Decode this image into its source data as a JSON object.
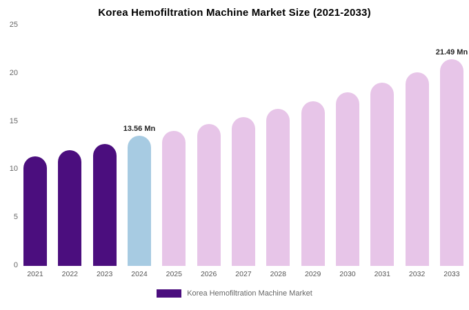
{
  "chart_data": {
    "type": "bar",
    "title": "Korea Hemofiltration Machine Market Size (2021-2033)",
    "categories": [
      "2021",
      "2022",
      "2023",
      "2024",
      "2025",
      "2026",
      "2027",
      "2028",
      "2029",
      "2030",
      "2031",
      "2032",
      "2033"
    ],
    "values": [
      11.4,
      12.0,
      12.68,
      13.56,
      14.05,
      14.75,
      15.5,
      16.3,
      17.15,
      18.05,
      19.05,
      20.1,
      21.49
    ],
    "unit": "Mn",
    "xlabel": "",
    "ylabel": "",
    "ylim": [
      0,
      25
    ],
    "y_ticks": [
      0,
      5,
      10,
      15,
      20,
      25
    ],
    "grid": false,
    "annotations": [
      {
        "category": "2024",
        "text": "13.56 Mn"
      },
      {
        "category": "2033",
        "text": "21.49 Mn"
      }
    ],
    "colors": {
      "historical": "#4B0E7E",
      "highlight": "#A7CBE2",
      "forecast": "#E7C5E8"
    },
    "bar_colors": [
      "#4B0E7E",
      "#4B0E7E",
      "#4B0E7E",
      "#A7CBE2",
      "#E7C5E8",
      "#E7C5E8",
      "#E7C5E8",
      "#E7C5E8",
      "#E7C5E8",
      "#E7C5E8",
      "#E7C5E8",
      "#E7C5E8",
      "#E7C5E8"
    ],
    "legend": {
      "label": "Korea Hemofiltration Machine Market",
      "position": "bottom",
      "swatch_color": "#4B0E7E"
    }
  }
}
